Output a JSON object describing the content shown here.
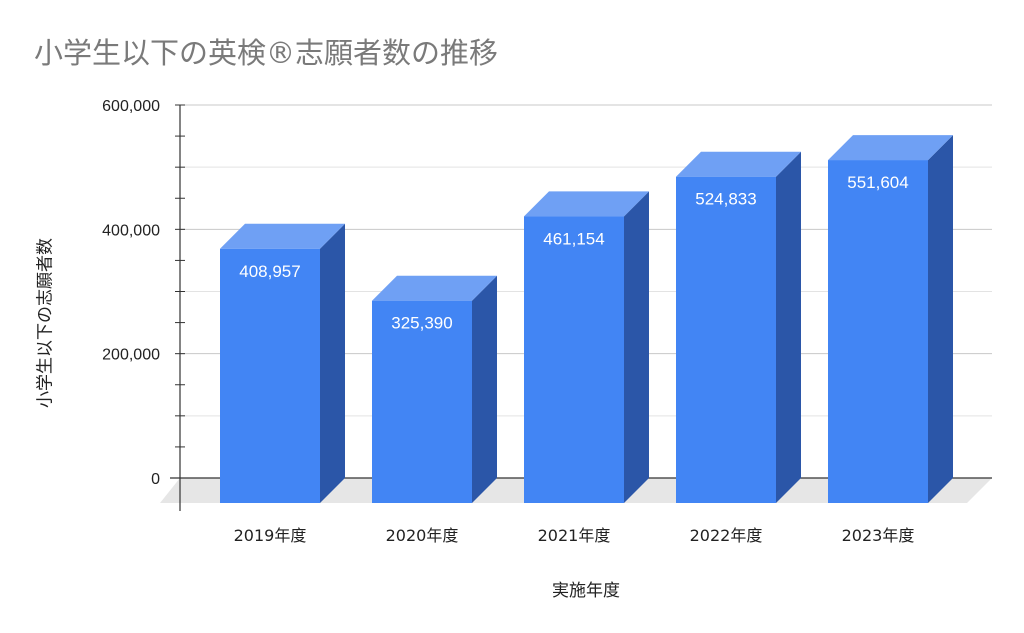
{
  "chart_data": {
    "type": "bar",
    "style": "3d",
    "title": "小学生以下の英検®志願者数の推移",
    "xlabel": "実施年度",
    "ylabel": "小学生以下の志願者数",
    "categories": [
      "2019年度",
      "2020年度",
      "2021年度",
      "2022年度",
      "2023年度"
    ],
    "series": [
      {
        "values": [
          408957,
          325390,
          461154,
          524833,
          551604
        ],
        "data_labels": [
          "408,957",
          "325,390",
          "461,154",
          "524,833",
          "551,604"
        ]
      }
    ],
    "ylim": [
      0,
      600000
    ],
    "yticks": [
      0,
      200000,
      400000,
      600000
    ],
    "ytick_labels": [
      "0",
      "200,000",
      "400,000",
      "600,000"
    ],
    "grid": true,
    "legend": "none",
    "colors": {
      "bar_front": "#4285f4",
      "bar_top": "#6fa0f4",
      "bar_side": "#2b56a8",
      "floor": "#e6e6e6",
      "grid": "#cfcfcf",
      "title": "#7a7a7a"
    }
  }
}
